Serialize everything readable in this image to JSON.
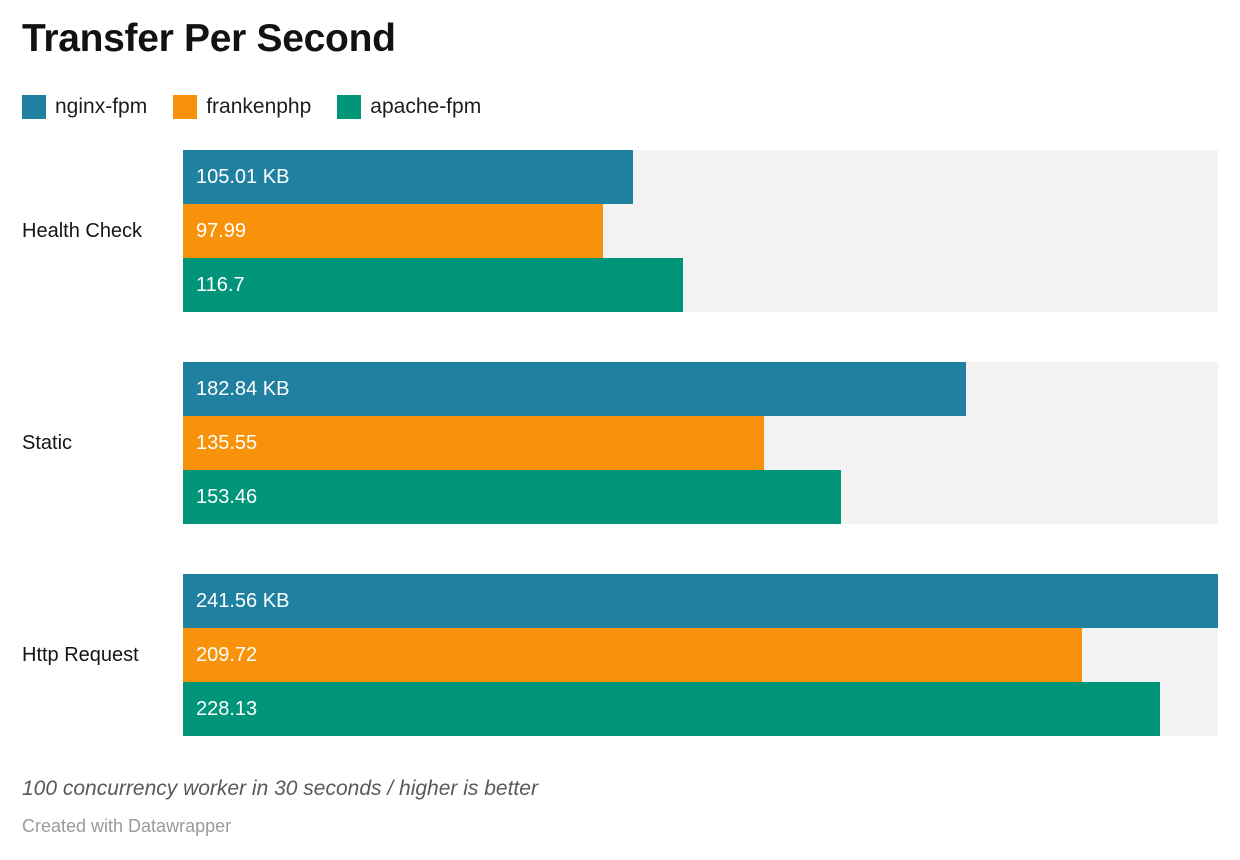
{
  "header": {
    "title": "Transfer Per Second"
  },
  "legend": {
    "position": "top",
    "items": [
      {
        "label": "nginx-fpm",
        "color": "#20809F"
      },
      {
        "label": "frankenphp",
        "color": "#F8920A"
      },
      {
        "label": "apache-fpm",
        "color": "#009478"
      }
    ]
  },
  "chart_data": {
    "type": "bar",
    "orientation": "horizontal",
    "title": "Transfer Per Second",
    "unit": "KB",
    "value_axis_max": 241.56,
    "grid": false,
    "legend_position": "top",
    "track_color": "#F2F2F2",
    "categories": [
      "Health Check",
      "Static",
      "Http Request"
    ],
    "series": [
      {
        "name": "nginx-fpm",
        "color": "#20809F",
        "values": [
          105.01,
          182.84,
          241.56
        ],
        "bar_labels": [
          "105.01 KB",
          "182.84 KB",
          "241.56 KB"
        ]
      },
      {
        "name": "frankenphp",
        "color": "#F8920A",
        "values": [
          97.99,
          135.55,
          209.72
        ],
        "bar_labels": [
          "97.99",
          "135.55",
          "209.72"
        ]
      },
      {
        "name": "apache-fpm",
        "color": "#009478",
        "values": [
          116.7,
          153.46,
          228.13
        ],
        "bar_labels": [
          "116.7",
          "153.46",
          "228.13"
        ]
      }
    ]
  },
  "footer": {
    "note": "100 concurrency worker in 30 seconds / higher is better",
    "attribution": "Created with Datawrapper"
  }
}
